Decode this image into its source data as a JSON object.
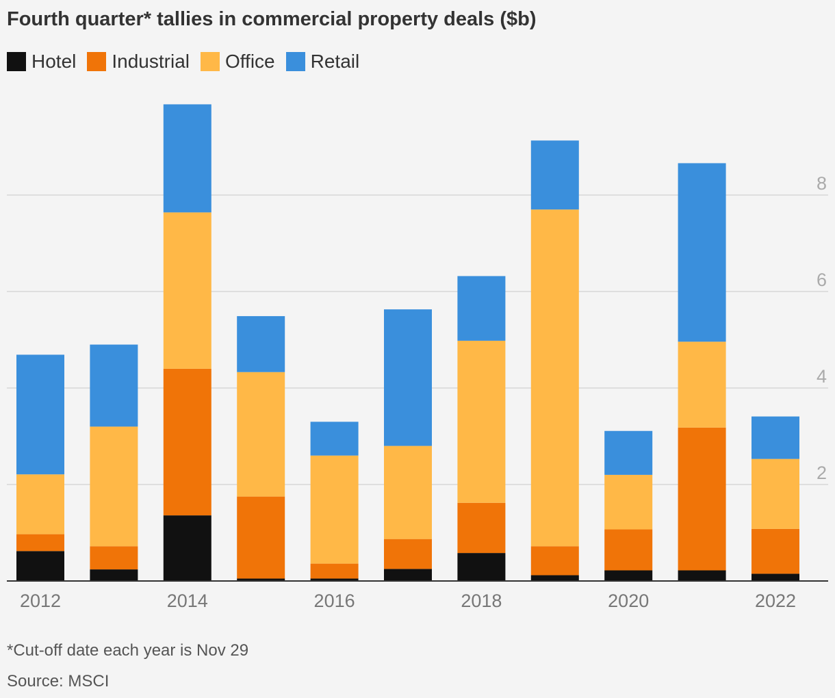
{
  "title": "Fourth quarter* tallies in commercial property deals ($b)",
  "footnote": "*Cut-off date each year is Nov 29",
  "source": "Source: MSCI",
  "colors": {
    "background": "#f4f4f4",
    "grid": "#d6d6d6",
    "axis": "#333333",
    "tick_text": "#aaaaaa",
    "x_tick_text": "#777777"
  },
  "chart_data": {
    "type": "bar",
    "stacked": true,
    "categories": [
      "2012",
      "2013",
      "2014",
      "2015",
      "2016",
      "2017",
      "2018",
      "2019",
      "2020",
      "2021",
      "2022"
    ],
    "x_tick_labels": [
      "2012",
      "",
      "2014",
      "",
      "2016",
      "",
      "2018",
      "",
      "2020",
      "",
      "2022"
    ],
    "series": [
      {
        "name": "Hotel",
        "color": "#111111",
        "values": [
          0.62,
          0.24,
          1.36,
          0.05,
          0.05,
          0.25,
          0.58,
          0.12,
          0.22,
          0.22,
          0.15
        ]
      },
      {
        "name": "Industrial",
        "color": "#f07408",
        "values": [
          0.35,
          0.48,
          3.04,
          1.7,
          0.31,
          0.62,
          1.04,
          0.6,
          0.85,
          2.96,
          0.93
        ]
      },
      {
        "name": "Office",
        "color": "#ffb847",
        "values": [
          1.24,
          2.48,
          3.24,
          2.58,
          2.24,
          1.93,
          3.36,
          6.98,
          1.13,
          1.78,
          1.45
        ]
      },
      {
        "name": "Retail",
        "color": "#3a8fdc",
        "values": [
          2.48,
          1.7,
          2.24,
          1.16,
          0.7,
          2.83,
          1.34,
          1.43,
          0.91,
          3.7,
          0.88
        ]
      }
    ],
    "y_ticks": [
      2,
      4,
      6,
      8
    ],
    "ylim": [
      0,
      10
    ],
    "grid": true,
    "legend_position": "top-left",
    "y_axis_position": "right"
  }
}
